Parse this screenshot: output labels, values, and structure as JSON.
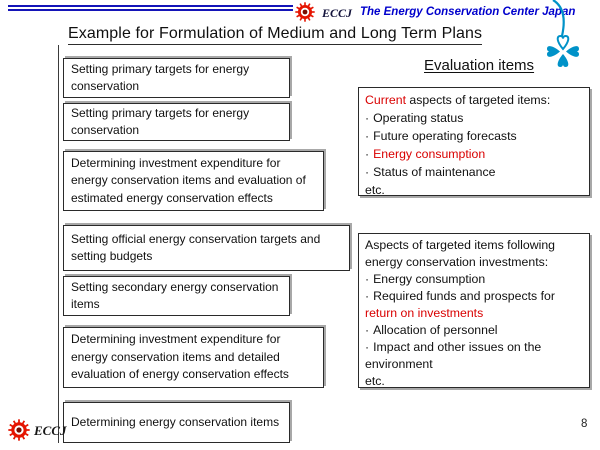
{
  "colors": {
    "accent_blue": "#1414b8",
    "link_blue": "#0000cc",
    "red_text": "#d90000",
    "logo_red": "#e51400",
    "logo_core": "#7a0c00",
    "clover_blue": "#0092c8",
    "border_dark": "#2a2a2a",
    "shadow_gray": "#a8a8a8"
  },
  "icons": {
    "header_logo": "eccj-sun-logo",
    "footer_logo": "eccj-sun-logo",
    "top_right_decoration": "clover-icon"
  },
  "header": {
    "eccj_label": "ECCJ",
    "org_name": "The Energy Conservation Center Japan"
  },
  "title": "Example for Formulation of Medium and Long Term Plans",
  "flow_steps": [
    {
      "label": "Setting primary targets for energy conservation"
    },
    {
      "label": "Setting primary targets for energy conservation"
    },
    {
      "label": "Determining investment expenditure for energy conservation items and evaluation of estimated energy conservation effects"
    },
    {
      "label": "Setting official energy conservation targets and setting budgets"
    },
    {
      "label": "Setting secondary energy conservation items"
    },
    {
      "label": "Determining investment expenditure for energy conservation items and detailed evaluation of energy conservation effects"
    },
    {
      "label": "Determining energy conservation items"
    }
  ],
  "evaluation": {
    "heading": "Evaluation items",
    "bullet_char": "·",
    "box1_lines": [
      {
        "bullet": false,
        "segments": [
          {
            "text": "Current",
            "red": true
          },
          {
            "text": " aspects of targeted items:",
            "red": false
          }
        ]
      },
      {
        "bullet": true,
        "segments": [
          {
            "text": "Operating status",
            "red": false
          }
        ]
      },
      {
        "bullet": true,
        "segments": [
          {
            "text": "Future operating forecasts",
            "red": false
          }
        ]
      },
      {
        "bullet": true,
        "segments": [
          {
            "text": "Energy consumption",
            "red": true
          }
        ]
      },
      {
        "bullet": true,
        "segments": [
          {
            "text": "Status of maintenance",
            "red": false
          }
        ]
      },
      {
        "bullet": false,
        "segments": [
          {
            "text": "etc.",
            "red": false
          }
        ]
      }
    ],
    "box2_lines": [
      {
        "bullet": false,
        "segments": [
          {
            "text": "Aspects of targeted items following energy conservation investments:",
            "red": false
          }
        ]
      },
      {
        "bullet": true,
        "segments": [
          {
            "text": "Energy consumption",
            "red": false
          }
        ]
      },
      {
        "bullet": true,
        "segments": [
          {
            "text": "Required funds and prospects for ",
            "red": false
          },
          {
            "text": "return on investments",
            "red": true
          }
        ]
      },
      {
        "bullet": true,
        "segments": [
          {
            "text": "Allocation of personnel",
            "red": false
          }
        ]
      },
      {
        "bullet": true,
        "segments": [
          {
            "text": "Impact and other issues on the environment",
            "red": false
          }
        ]
      },
      {
        "bullet": false,
        "segments": [
          {
            "text": "etc.",
            "red": false
          }
        ]
      }
    ]
  },
  "footer": {
    "eccj_label": "ECCJ",
    "page_number": "8"
  }
}
